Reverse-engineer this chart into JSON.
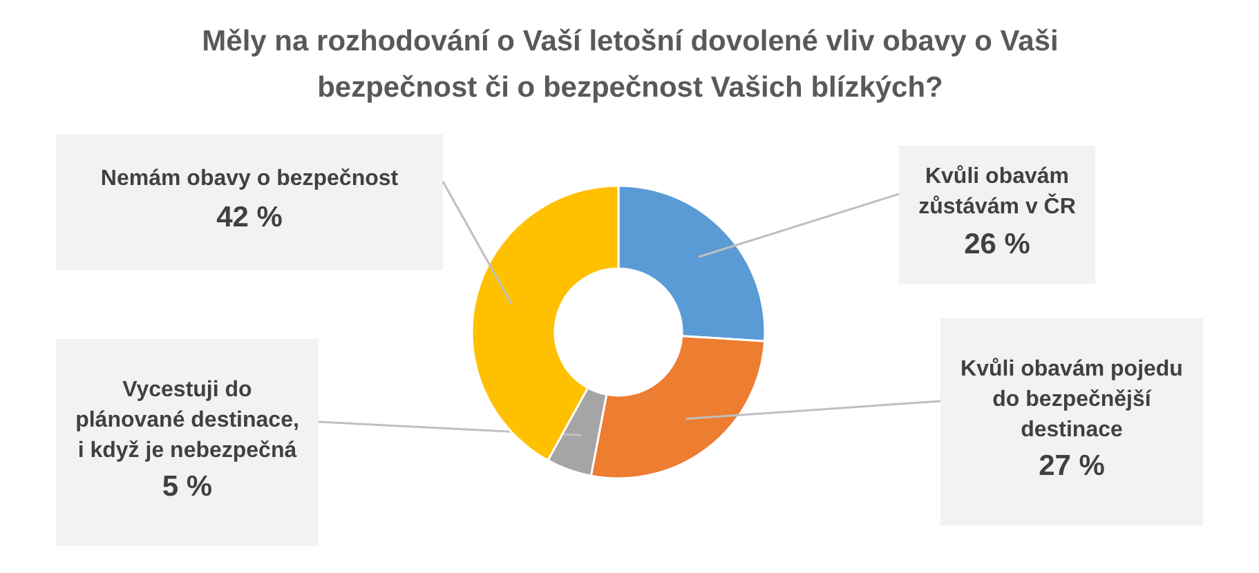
{
  "chart_data": {
    "type": "donut",
    "title": "Měly na rozhodování o Vaší letošní dovolené vliv obavy o Vaši bezpečnost či o bezpečnost Vašich blízkých?",
    "categories": [
      "Kvůli obavám zůstávám v ČR",
      "Kvůli obavám pojedu do bezpečnější destinace",
      "Vycestuji do plánované destinace, i když je nebezpečná",
      "Nemám obavy o bezpečnost"
    ],
    "values": [
      26,
      27,
      5,
      42
    ],
    "colors": [
      "#5b9bd5",
      "#ed7d31",
      "#a5a5a5",
      "#ffc000"
    ],
    "value_labels": [
      "26 %",
      "27 %",
      "5 %",
      "42 %"
    ],
    "legend": false
  }
}
